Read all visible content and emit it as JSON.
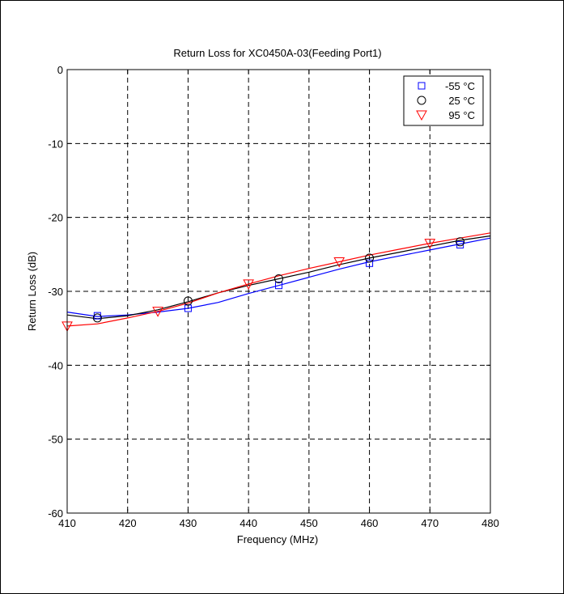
{
  "chart_data": {
    "type": "line",
    "title": "Return Loss for XC0450A-03(Feeding Port1)",
    "xlabel": "Frequency (MHz)",
    "ylabel": "Return Loss (dB)",
    "xlim": [
      410,
      480
    ],
    "ylim": [
      -60,
      0
    ],
    "xticks": [
      "410",
      "420",
      "430",
      "440",
      "450",
      "460",
      "470",
      "480"
    ],
    "yticks": [
      "0",
      "-10",
      "-20",
      "-30",
      "-40",
      "-50",
      "-60"
    ],
    "grid": true,
    "legend_position": "top-right",
    "series": [
      {
        "name": "-55 °C",
        "color": "#0000ff",
        "marker": "square",
        "curve": {
          "x": [
            410,
            415,
            420,
            425,
            430,
            435,
            440,
            445,
            450,
            455,
            460,
            465,
            470,
            475,
            480
          ],
          "y": [
            -32.8,
            -33.4,
            -33.2,
            -32.8,
            -32.3,
            -31.5,
            -30.3,
            -29.2,
            -28.1,
            -27.0,
            -26.0,
            -25.2,
            -24.4,
            -23.6,
            -22.8
          ]
        },
        "markers": {
          "x": [
            415,
            430,
            445,
            460,
            475
          ],
          "y": [
            -33.3,
            -32.3,
            -29.2,
            -26.2,
            -23.7
          ]
        }
      },
      {
        "name": "25 °C",
        "color": "#000000",
        "marker": "circle",
        "curve": {
          "x": [
            410,
            415,
            420,
            425,
            430,
            435,
            440,
            445,
            450,
            455,
            460,
            465,
            470,
            475,
            480
          ],
          "y": [
            -33.2,
            -33.7,
            -33.3,
            -32.5,
            -31.4,
            -30.2,
            -29.2,
            -28.3,
            -27.4,
            -26.4,
            -25.5,
            -24.7,
            -23.9,
            -23.1,
            -22.5
          ]
        },
        "markers": {
          "x": [
            415,
            430,
            445,
            460,
            475
          ],
          "y": [
            -33.6,
            -31.3,
            -28.3,
            -25.5,
            -23.3
          ]
        }
      },
      {
        "name": "95 °C",
        "color": "#ff0000",
        "marker": "triangle-down",
        "curve": {
          "x": [
            410,
            415,
            420,
            425,
            430,
            435,
            440,
            445,
            450,
            455,
            460,
            465,
            470,
            475,
            480
          ],
          "y": [
            -34.7,
            -34.4,
            -33.6,
            -32.7,
            -31.6,
            -30.2,
            -29.0,
            -27.9,
            -26.9,
            -26.0,
            -25.1,
            -24.3,
            -23.5,
            -22.8,
            -22.1
          ]
        },
        "markers": {
          "x": [
            410,
            425,
            440,
            455,
            470
          ],
          "y": [
            -34.7,
            -32.7,
            -29.0,
            -26.0,
            -23.5
          ]
        }
      }
    ]
  }
}
